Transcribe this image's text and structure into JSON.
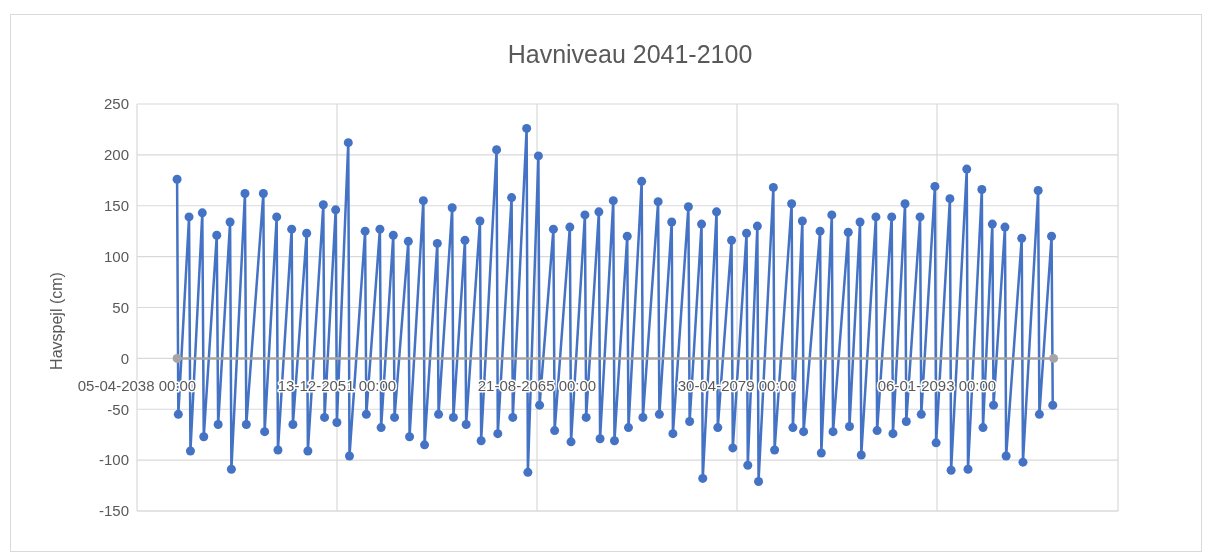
{
  "chart_data": {
    "type": "line",
    "title": "Havniveau 2041-2100",
    "ylabel": "Havspejl (cm)",
    "xlim": [
      "2038-04-05",
      "2105-05-29"
    ],
    "xticks": [
      {
        "value": "2038-04-05",
        "label": "05-04-2038 00:00"
      },
      {
        "value": "2051-12-13",
        "label": "13-12-2051 00:00"
      },
      {
        "value": "2065-08-21",
        "label": "21-08-2065 00:00"
      },
      {
        "value": "2079-04-30",
        "label": "30-04-2079 00:00"
      },
      {
        "value": "2093-01-06",
        "label": "06-01-2093 00:00"
      }
    ],
    "ylim": [
      -150,
      250
    ],
    "yticks": [
      -150,
      -100,
      -50,
      0,
      50,
      100,
      150,
      200,
      250
    ],
    "grid": true,
    "marker": "circle",
    "line_style": "solid",
    "series": [
      {
        "color": "#4472c4",
        "x": [
          "2041-01-01",
          "2041-02-01",
          "2041-10-27",
          "2041-12-01",
          "2042-09-24",
          "2042-10-30",
          "2043-09-20",
          "2043-10-25",
          "2044-08-18",
          "2044-09-20",
          "2045-08-25",
          "2045-09-28",
          "2046-11-28",
          "2046-12-30",
          "2047-10-27",
          "2047-11-28",
          "2048-11-05",
          "2048-12-06",
          "2049-11-15",
          "2049-12-15",
          "2051-01-05",
          "2051-02-05",
          "2051-11-10",
          "2051-12-10",
          "2052-09-20",
          "2052-10-20",
          "2053-11-15",
          "2053-12-15",
          "2054-11-20",
          "2054-12-20",
          "2055-10-20",
          "2055-11-20",
          "2056-10-30",
          "2056-11-30",
          "2057-11-10",
          "2057-12-10",
          "2058-10-25",
          "2058-11-25",
          "2059-11-01",
          "2059-12-01",
          "2060-09-15",
          "2060-10-15",
          "2061-09-25",
          "2061-10-25",
          "2062-11-15",
          "2062-12-15",
          "2063-11-25",
          "2063-12-25",
          "2064-12-05",
          "2065-01-05",
          "2065-09-25",
          "2065-10-25",
          "2066-10-05",
          "2066-11-05",
          "2067-11-20",
          "2067-12-20",
          "2068-12-01",
          "2069-01-01",
          "2069-11-15",
          "2069-12-15",
          "2070-11-10",
          "2070-12-10",
          "2071-10-25",
          "2071-11-25",
          "2072-10-20",
          "2072-11-20",
          "2073-12-05",
          "2074-01-05",
          "2074-11-10",
          "2074-12-10",
          "2076-01-01",
          "2076-02-01",
          "2076-11-25",
          "2076-12-25",
          "2077-12-05",
          "2078-01-05",
          "2078-12-15",
          "2079-01-15",
          "2079-12-25",
          "2080-01-25",
          "2080-09-20",
          "2080-10-20",
          "2081-10-25",
          "2081-11-25",
          "2083-01-25",
          "2083-02-25",
          "2083-10-20",
          "2083-11-20",
          "2085-01-05",
          "2085-02-05",
          "2085-10-25",
          "2085-11-25",
          "2086-12-10",
          "2087-01-10",
          "2087-10-01",
          "2087-11-01",
          "2088-11-01",
          "2088-12-01",
          "2089-12-01",
          "2090-01-01",
          "2090-10-30",
          "2090-11-30",
          "2091-11-10",
          "2091-12-10",
          "2092-11-15",
          "2092-12-15",
          "2093-11-25",
          "2093-12-25",
          "2095-01-20",
          "2095-02-20",
          "2096-02-01",
          "2096-03-01",
          "2096-10-20",
          "2096-11-20",
          "2097-09-01",
          "2097-10-01",
          "2098-10-25",
          "2098-11-25",
          "2099-12-10",
          "2100-01-10",
          "2100-11-10",
          "2100-12-10"
        ],
        "values": [
          176,
          -55,
          139,
          -91,
          143,
          -77,
          121,
          -65,
          134,
          -109,
          162,
          -65,
          162,
          -72,
          139,
          -90,
          127,
          -65,
          123,
          -91,
          151,
          -58,
          146,
          -63,
          212,
          -96,
          125,
          -55,
          127,
          -68,
          121,
          -58,
          115,
          -77,
          155,
          -85,
          113,
          -55,
          148,
          -58,
          116,
          -65,
          135,
          -81,
          205,
          -74,
          158,
          -58,
          226,
          -112,
          199,
          -46,
          127,
          -71,
          129,
          -82,
          141,
          -58,
          144,
          -79,
          155,
          -81,
          120,
          -68,
          174,
          -58,
          154,
          -55,
          134,
          -74,
          149,
          -62,
          132,
          -118,
          144,
          -68,
          116,
          -88,
          123,
          -105,
          130,
          -121,
          168,
          -90,
          152,
          -68,
          135,
          -72,
          125,
          -93,
          141,
          -72,
          124,
          -67,
          134,
          -95,
          139,
          -71,
          139,
          -74,
          152,
          -62,
          139,
          -55,
          169,
          -83,
          157,
          -110,
          186,
          -109,
          166,
          -68,
          132,
          -46,
          129,
          -96,
          118,
          -102,
          165,
          -55,
          120,
          -46
        ]
      },
      {
        "color": "#a5a5a5",
        "x": [
          "2041-01-01",
          "2100-12-31"
        ],
        "values": [
          0,
          0
        ]
      }
    ]
  }
}
